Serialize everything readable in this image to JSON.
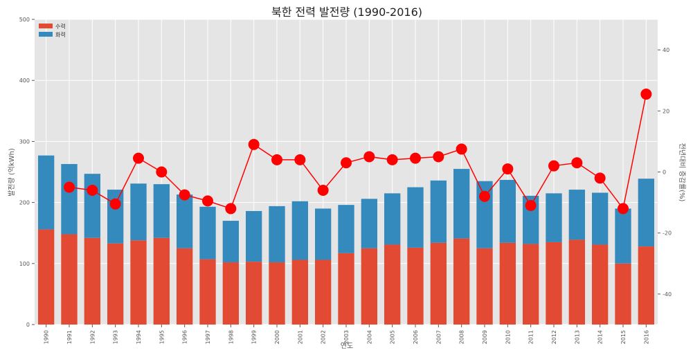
{
  "chart_data": {
    "type": "bar",
    "title": "북한 전력 발전량 (1990-2016)",
    "xlabel": "연도",
    "ylabel": "발전량 (억kWh)",
    "y2label": "전년대비 증감률(%)",
    "categories": [
      "1990",
      "1991",
      "1992",
      "1993",
      "1994",
      "1995",
      "1996",
      "1997",
      "1998",
      "1999",
      "2000",
      "2001",
      "2002",
      "2003",
      "2004",
      "2005",
      "2006",
      "2007",
      "2008",
      "2009",
      "2010",
      "2011",
      "2012",
      "2013",
      "2014",
      "2015",
      "2016"
    ],
    "stacked": true,
    "ylim": [
      0,
      500
    ],
    "y_ticks": [
      0,
      100,
      200,
      300,
      400,
      500
    ],
    "y2lim": [
      -50,
      50
    ],
    "y2_ticks": [
      -40,
      -20,
      0,
      20,
      40
    ],
    "grid": true,
    "legend_position": "top-left",
    "series": [
      {
        "name": "수력",
        "color": "#E24A33",
        "values": [
          156,
          148,
          142,
          133,
          138,
          142,
          125,
          107,
          102,
          103,
          102,
          106,
          106,
          117,
          125,
          131,
          126,
          134,
          141,
          125,
          134,
          132,
          135,
          139,
          131,
          100,
          128
        ]
      },
      {
        "name": "화력",
        "color": "#348ABD",
        "values": [
          121,
          115,
          105,
          88,
          93,
          88,
          88,
          86,
          68,
          83,
          92,
          96,
          84,
          79,
          81,
          84,
          99,
          102,
          114,
          110,
          103,
          79,
          80,
          82,
          85,
          90,
          111
        ]
      }
    ],
    "line_series": {
      "axis": "right",
      "color": "#FF0000",
      "x": [
        "1991",
        "1992",
        "1993",
        "1994",
        "1995",
        "1996",
        "1997",
        "1998",
        "1999",
        "2000",
        "2001",
        "2002",
        "2003",
        "2004",
        "2005",
        "2006",
        "2007",
        "2008",
        "2009",
        "2010",
        "2011",
        "2012",
        "2013",
        "2014",
        "2015",
        "2016"
      ],
      "values": [
        -5,
        -6,
        -10.5,
        4.5,
        0,
        -7.5,
        -9.5,
        -12,
        9,
        4,
        4,
        -6,
        3,
        5,
        4,
        4.5,
        5,
        7.5,
        -8,
        1,
        -11,
        2,
        3,
        -2,
        -12,
        25.5
      ]
    }
  }
}
